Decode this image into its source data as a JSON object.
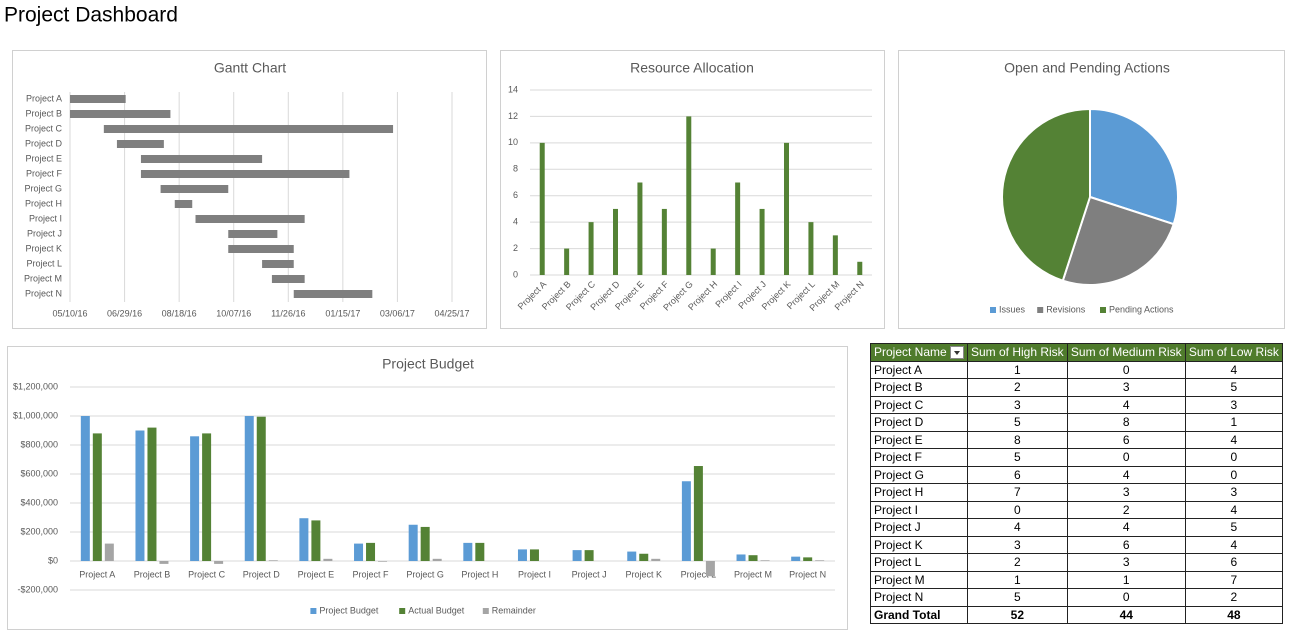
{
  "title": "Project Dashboard",
  "chart_data": [
    {
      "type": "gantt",
      "title": "Gantt Chart",
      "categories": [
        "Project A",
        "Project B",
        "Project C",
        "Project D",
        "Project E",
        "Project F",
        "Project G",
        "Project H",
        "Project I",
        "Project J",
        "Project K",
        "Project L",
        "Project M",
        "Project N"
      ],
      "starts": [
        "05/10/16",
        "05/10/16",
        "06/10/16",
        "06/22/16",
        "07/14/16",
        "07/14/16",
        "08/01/16",
        "08/14/16",
        "09/02/16",
        "10/02/16",
        "10/02/16",
        "11/02/16",
        "11/11/16",
        "12/01/16"
      ],
      "ends": [
        "06/30/16",
        "08/10/16",
        "03/02/17",
        "08/04/16",
        "11/02/16",
        "01/21/17",
        "10/02/16",
        "08/30/16",
        "12/11/16",
        "11/16/16",
        "12/01/16",
        "12/01/16",
        "12/11/16",
        "02/11/17"
      ],
      "color": "#7f7f7f",
      "xlim": [
        "05/10/16",
        "04/25/17"
      ],
      "xticks": [
        "05/10/16",
        "06/29/16",
        "08/18/16",
        "10/07/16",
        "11/26/16",
        "01/15/17",
        "03/06/17",
        "04/25/17"
      ],
      "grid": true
    },
    {
      "type": "bar",
      "title": "Resource Allocation",
      "categories": [
        "Project A",
        "Project B",
        "Project C",
        "Project D",
        "Project E",
        "Project F",
        "Project G",
        "Project H",
        "Project I",
        "Project J",
        "Project K",
        "Project L",
        "Project M",
        "Project N"
      ],
      "values": [
        10,
        2,
        4,
        5,
        7,
        5,
        12,
        2,
        7,
        5,
        10,
        4,
        3,
        1
      ],
      "color": "#548235",
      "ylim": [
        0,
        14
      ],
      "yticks": [
        0,
        2,
        4,
        6,
        8,
        10,
        12,
        14
      ],
      "grid": true
    },
    {
      "type": "pie",
      "title": "Open and Pending Actions",
      "categories": [
        "Issues",
        "Revisions",
        "Pending Actions"
      ],
      "values": [
        30,
        25,
        45
      ],
      "colors": [
        "#5b9bd5",
        "#7f7f7f",
        "#548235"
      ],
      "legend": "bottom"
    },
    {
      "type": "grouped-bar",
      "title": "Project Budget",
      "categories": [
        "Project A",
        "Project B",
        "Project C",
        "Project D",
        "Project E",
        "Project F",
        "Project G",
        "Project H",
        "Project I",
        "Project J",
        "Project K",
        "Project L",
        "Project M",
        "Project N"
      ],
      "series": [
        {
          "name": "Project Budget",
          "color": "#5b9bd5",
          "values": [
            1000000,
            900000,
            860000,
            1000000,
            295000,
            120000,
            250000,
            125000,
            80000,
            75000,
            65000,
            550000,
            45000,
            30000
          ]
        },
        {
          "name": "Actual Budget",
          "color": "#548235",
          "values": [
            880000,
            920000,
            880000,
            995000,
            280000,
            125000,
            235000,
            125000,
            80000,
            75000,
            50000,
            655000,
            40000,
            25000
          ]
        },
        {
          "name": "Remainder",
          "color": "#a5a5a5",
          "values": [
            120000,
            -20000,
            -20000,
            5000,
            15000,
            -5000,
            15000,
            0,
            0,
            0,
            15000,
            -105000,
            5000,
            5000
          ]
        }
      ],
      "ylim": [
        -200000,
        1200000
      ],
      "yticks": [
        {
          "value": -200000,
          "label": "-$200,000"
        },
        {
          "value": 0,
          "label": "$0"
        },
        {
          "value": 200000,
          "label": "$200,000"
        },
        {
          "value": 400000,
          "label": "$400,000"
        },
        {
          "value": 600000,
          "label": "$600,000"
        },
        {
          "value": 800000,
          "label": "$800,000"
        },
        {
          "value": 1000000,
          "label": "$1,000,000"
        },
        {
          "value": 1200000,
          "label": "$1,200,000"
        }
      ],
      "grid": true,
      "legend": "bottom"
    }
  ],
  "table": {
    "columns": [
      "Project Name",
      "Sum of High Risk",
      "Sum of Medium Risk",
      "Sum of Low Risk"
    ],
    "rows": [
      [
        "Project A",
        1,
        0,
        4
      ],
      [
        "Project B",
        2,
        3,
        5
      ],
      [
        "Project C",
        3,
        4,
        3
      ],
      [
        "Project D",
        5,
        8,
        1
      ],
      [
        "Project E",
        8,
        6,
        4
      ],
      [
        "Project F",
        5,
        0,
        0
      ],
      [
        "Project G",
        6,
        4,
        0
      ],
      [
        "Project H",
        7,
        3,
        3
      ],
      [
        "Project I",
        0,
        2,
        4
      ],
      [
        "Project J",
        4,
        4,
        5
      ],
      [
        "Project K",
        3,
        6,
        4
      ],
      [
        "Project L",
        2,
        3,
        6
      ],
      [
        "Project M",
        1,
        1,
        7
      ],
      [
        "Project N",
        5,
        0,
        2
      ]
    ],
    "total": [
      "Grand Total",
      52,
      44,
      48
    ]
  }
}
